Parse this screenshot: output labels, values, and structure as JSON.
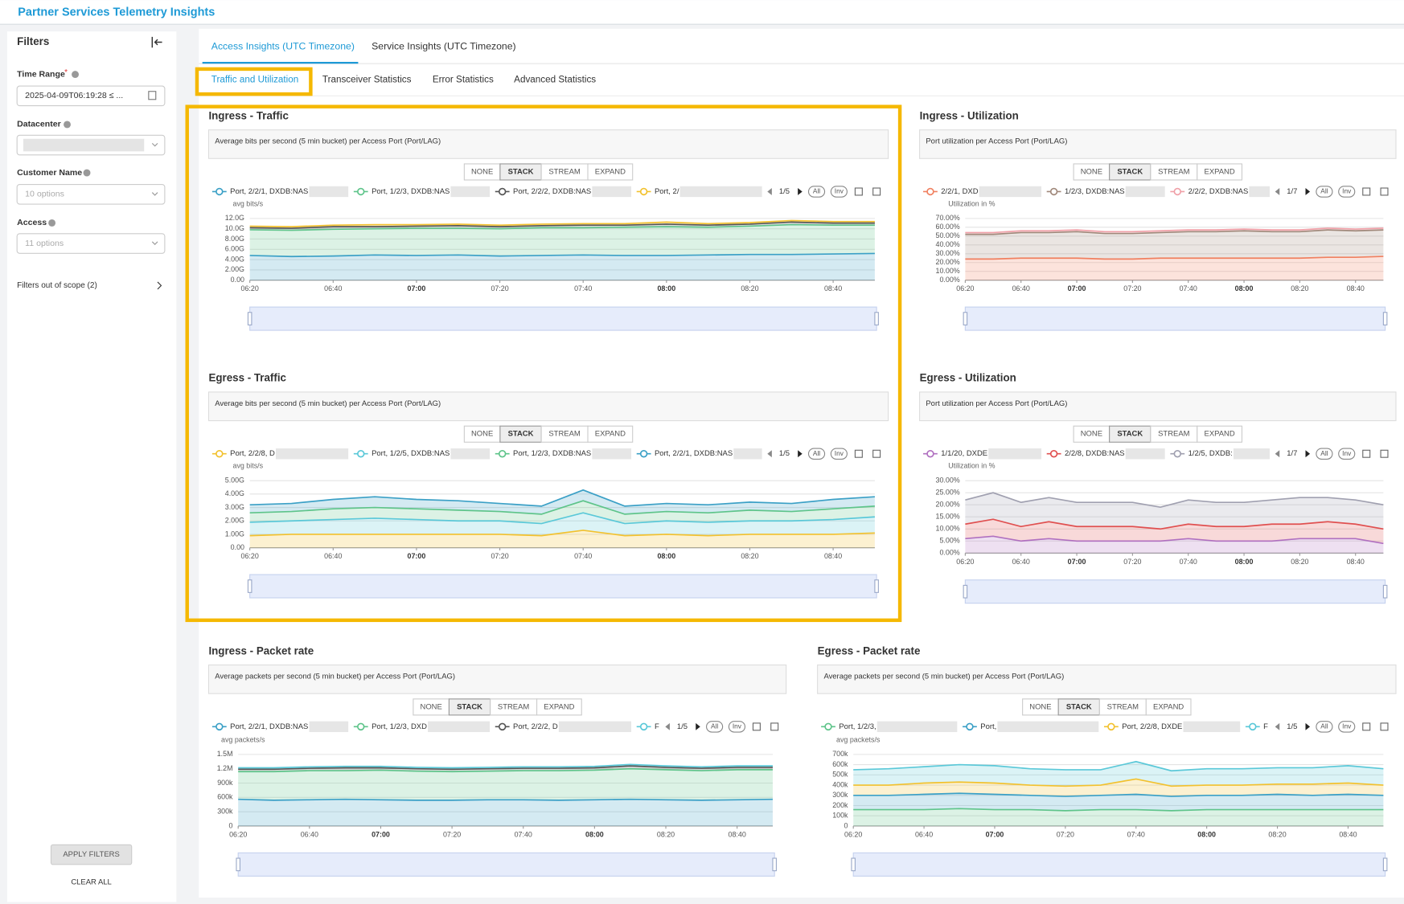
{
  "header": {
    "title": "Partner Services Telemetry Insights"
  },
  "filters": {
    "title": "Filters",
    "time_range_label": "Time Range",
    "required_mark": "*",
    "time_range_value": "2025-04-09T06:19:28 ≤ ...",
    "datacenter_label": "Datacenter",
    "customer_label": "Customer Name",
    "customer_placeholder": "10 options",
    "access_label": "Access",
    "access_placeholder": "11 options",
    "out_of_scope": "Filters out of scope (2)",
    "apply": "APPLY FILTERS",
    "clear": "CLEAR ALL"
  },
  "tabs": [
    "Access Insights (UTC Timezone)",
    "Service Insights (UTC Timezone)"
  ],
  "subtabs": [
    "Traffic and Utilization",
    "Transceiver Statistics",
    "Error Statistics",
    "Advanced Statistics"
  ],
  "chart_data": [
    {
      "type": "area",
      "stacked": true,
      "title": "Ingress - Traffic",
      "subtitle": "Average bits per second (5 min bucket) per Access Port (Port/LAG)",
      "modes": [
        "NONE",
        "STACK",
        "STREAM",
        "EXPAND"
      ],
      "active_mode": "STACK",
      "pager": "1/5",
      "legend_buttons": [
        "All",
        "Inv"
      ],
      "ylabel": "avg bits/s",
      "x": [
        "06:20",
        "06:30",
        "06:40",
        "06:50",
        "07:00",
        "07:10",
        "07:20",
        "07:30",
        "07:40",
        "07:50",
        "08:00",
        "08:10",
        "08:20",
        "08:30",
        "08:40",
        "08:50"
      ],
      "xticks": [
        "06:20",
        "06:40",
        "07:00",
        "07:20",
        "07:40",
        "08:00",
        "08:20",
        "08:40"
      ],
      "ylim": [
        0,
        12
      ],
      "yticks": [
        {
          "value": 12,
          "label": "12.0G"
        },
        {
          "value": 10,
          "label": "10.0G"
        },
        {
          "value": 8,
          "label": "8.00G"
        },
        {
          "value": 6,
          "label": "6.00G"
        },
        {
          "value": 4,
          "label": "4.00G"
        },
        {
          "value": 2,
          "label": "2.00G"
        },
        {
          "value": 0,
          "label": "0.00"
        }
      ],
      "series": [
        {
          "name": "Port, 2/2/1, DXDB:NAS",
          "color": "#3ba0c6",
          "values": [
            4.8,
            4.6,
            4.7,
            4.9,
            4.8,
            4.9,
            4.7,
            4.8,
            4.9,
            4.8,
            4.8,
            4.9,
            5.0,
            5.0,
            5.1,
            5.2
          ]
        },
        {
          "name": "Port, 1/2/3, DXDB:NAS",
          "color": "#5ec48a",
          "values": [
            5.0,
            5.1,
            5.2,
            5.1,
            5.3,
            5.2,
            5.3,
            5.4,
            5.3,
            5.5,
            5.6,
            5.4,
            5.5,
            5.8,
            5.6,
            5.5
          ]
        },
        {
          "name": "Port, 2/2/2, DXDB:NAS",
          "color": "#555555",
          "values": [
            0.4,
            0.4,
            0.5,
            0.4,
            0.4,
            0.5,
            0.4,
            0.4,
            0.5,
            0.4,
            0.5,
            0.4,
            0.4,
            0.5,
            0.4,
            0.4
          ]
        },
        {
          "name": "Port, 2/",
          "color": "#f2c12e",
          "values": [
            0.3,
            0.3,
            0.3,
            0.4,
            0.3,
            0.3,
            0.3,
            0.3,
            0.3,
            0.3,
            0.4,
            0.3,
            0.3,
            0.3,
            0.3,
            0.3
          ]
        }
      ]
    },
    {
      "type": "area",
      "stacked": true,
      "title": "Ingress - Utilization",
      "subtitle": "Port utilization per Access Port (Port/LAG)",
      "modes": [
        "NONE",
        "STACK",
        "STREAM",
        "EXPAND"
      ],
      "active_mode": "STACK",
      "pager": "1/7",
      "legend_buttons": [
        "All",
        "Inv"
      ],
      "ylabel": "Utilization in %",
      "x": [
        "06:20",
        "06:30",
        "06:40",
        "06:50",
        "07:00",
        "07:10",
        "07:20",
        "07:30",
        "07:40",
        "07:50",
        "08:00",
        "08:10",
        "08:20",
        "08:30",
        "08:40",
        "08:50"
      ],
      "xticks": [
        "06:20",
        "06:40",
        "07:00",
        "07:20",
        "07:40",
        "08:00",
        "08:20",
        "08:40"
      ],
      "ylim": [
        0,
        70
      ],
      "yticks": [
        {
          "value": 70,
          "label": "70.00%"
        },
        {
          "value": 60,
          "label": "60.00%"
        },
        {
          "value": 50,
          "label": "50.00%"
        },
        {
          "value": 40,
          "label": "40.00%"
        },
        {
          "value": 30,
          "label": "30.00%"
        },
        {
          "value": 20,
          "label": "20.00%"
        },
        {
          "value": 10,
          "label": "10.00%"
        },
        {
          "value": 0,
          "label": "0.00%"
        }
      ],
      "series": [
        {
          "name": "2/2/1, DXD",
          "color": "#f08060",
          "values": [
            24,
            24,
            25,
            25,
            25,
            24,
            24,
            25,
            25,
            25,
            25,
            25,
            25,
            26,
            26,
            27
          ]
        },
        {
          "name": "1/2/3, DXDB:NAS",
          "color": "#a0887a",
          "values": [
            28,
            28,
            29,
            29,
            30,
            29,
            29,
            29,
            30,
            30,
            31,
            30,
            30,
            31,
            30,
            30
          ]
        },
        {
          "name": "2/2/2, DXDB:NAS",
          "color": "#f0a0a8",
          "values": [
            2,
            2,
            2,
            2,
            2,
            2,
            2,
            2,
            2,
            2,
            2,
            2,
            2,
            2,
            2,
            2
          ]
        }
      ]
    },
    {
      "type": "area",
      "stacked": true,
      "title": "Egress - Traffic",
      "subtitle": "Average bits per second (5 min bucket) per Access Port (Port/LAG)",
      "modes": [
        "NONE",
        "STACK",
        "STREAM",
        "EXPAND"
      ],
      "active_mode": "STACK",
      "pager": "1/5",
      "legend_buttons": [
        "All",
        "Inv"
      ],
      "ylabel": "avg bits/s",
      "x": [
        "06:20",
        "06:30",
        "06:40",
        "06:50",
        "07:00",
        "07:10",
        "07:20",
        "07:30",
        "07:40",
        "07:50",
        "08:00",
        "08:10",
        "08:20",
        "08:30",
        "08:40",
        "08:50"
      ],
      "xticks": [
        "06:20",
        "06:40",
        "07:00",
        "07:20",
        "07:40",
        "08:00",
        "08:20",
        "08:40"
      ],
      "ylim": [
        0,
        5
      ],
      "yticks": [
        {
          "value": 5,
          "label": "5.00G"
        },
        {
          "value": 4,
          "label": "4.00G"
        },
        {
          "value": 3,
          "label": "3.00G"
        },
        {
          "value": 2,
          "label": "2.00G"
        },
        {
          "value": 1,
          "label": "1.00G"
        },
        {
          "value": 0,
          "label": "0.00"
        }
      ],
      "series": [
        {
          "name": "Port, 2/2/8, D",
          "color": "#f2c12e",
          "values": [
            0.9,
            1.0,
            1.0,
            1.0,
            1.0,
            1.0,
            1.0,
            0.9,
            1.3,
            0.9,
            1.0,
            0.9,
            1.0,
            1.0,
            1.0,
            1.1
          ]
        },
        {
          "name": "Port, 1/2/5, DXDB:NAS",
          "color": "#5ac8d8",
          "values": [
            1.0,
            1.0,
            1.1,
            1.2,
            1.1,
            1.0,
            1.0,
            0.9,
            1.3,
            0.9,
            1.0,
            1.0,
            1.0,
            1.0,
            1.1,
            1.2
          ]
        },
        {
          "name": "Port, 1/2/3, DXDB:NAS",
          "color": "#5ec48a",
          "values": [
            0.7,
            0.7,
            0.8,
            0.8,
            0.8,
            0.8,
            0.7,
            0.7,
            0.9,
            0.7,
            0.7,
            0.7,
            0.8,
            0.7,
            0.8,
            0.8
          ]
        },
        {
          "name": "Port, 2/2/1, DXDB:NAS",
          "color": "#3ba0c6",
          "values": [
            0.6,
            0.6,
            0.7,
            0.8,
            0.7,
            0.7,
            0.6,
            0.6,
            0.8,
            0.6,
            0.6,
            0.6,
            0.6,
            0.6,
            0.7,
            0.7
          ]
        }
      ]
    },
    {
      "type": "area",
      "stacked": true,
      "title": "Egress - Utilization",
      "subtitle": "Port utilization per Access Port (Port/LAG)",
      "modes": [
        "NONE",
        "STACK",
        "STREAM",
        "EXPAND"
      ],
      "active_mode": "STACK",
      "pager": "1/7",
      "legend_buttons": [
        "All",
        "Inv"
      ],
      "ylabel": "Utilization in %",
      "x": [
        "06:20",
        "06:30",
        "06:40",
        "06:50",
        "07:00",
        "07:10",
        "07:20",
        "07:30",
        "07:40",
        "07:50",
        "08:00",
        "08:10",
        "08:20",
        "08:30",
        "08:40",
        "08:50"
      ],
      "xticks": [
        "06:20",
        "06:40",
        "07:00",
        "07:20",
        "07:40",
        "08:00",
        "08:20",
        "08:40"
      ],
      "ylim": [
        0,
        30
      ],
      "yticks": [
        {
          "value": 30,
          "label": "30.00%"
        },
        {
          "value": 25,
          "label": "25.00%"
        },
        {
          "value": 20,
          "label": "20.00%"
        },
        {
          "value": 15,
          "label": "15.00%"
        },
        {
          "value": 10,
          "label": "10.00%"
        },
        {
          "value": 5,
          "label": "5.00%"
        },
        {
          "value": 0,
          "label": "0.00%"
        }
      ],
      "series": [
        {
          "name": "1/1/20, DXDE",
          "color": "#b070c0",
          "values": [
            6,
            7,
            5,
            6,
            5,
            5,
            5,
            5,
            6,
            5,
            5,
            5,
            6,
            6,
            6,
            4
          ]
        },
        {
          "name": "2/2/8, DXDB:NAS",
          "color": "#e05050",
          "values": [
            6,
            7,
            6,
            7,
            6,
            6,
            6,
            5,
            6,
            6,
            6,
            7,
            6,
            7,
            6,
            6
          ]
        },
        {
          "name": "1/2/5, DXDB:",
          "color": "#a0a0b0",
          "values": [
            10,
            11,
            10,
            10,
            10,
            10,
            10,
            9,
            10,
            10,
            10,
            10,
            11,
            10,
            10,
            10
          ]
        }
      ]
    },
    {
      "type": "area",
      "stacked": true,
      "title": "Ingress - Packet rate",
      "subtitle": "Average packets per second (5 min bucket) per Access Port (Port/LAG)",
      "modes": [
        "NONE",
        "STACK",
        "STREAM",
        "EXPAND"
      ],
      "active_mode": "STACK",
      "pager": "1/5",
      "legend_buttons": [
        "All",
        "Inv"
      ],
      "ylabel": "avg packets/s",
      "x": [
        "06:20",
        "06:30",
        "06:40",
        "06:50",
        "07:00",
        "07:10",
        "07:20",
        "07:30",
        "07:40",
        "07:50",
        "08:00",
        "08:10",
        "08:20",
        "08:30",
        "08:40",
        "08:50"
      ],
      "xticks": [
        "06:20",
        "06:40",
        "07:00",
        "07:20",
        "07:40",
        "08:00",
        "08:20",
        "08:40"
      ],
      "ylim": [
        0,
        1500000
      ],
      "yticks": [
        {
          "value": 1500000,
          "label": "1.5M"
        },
        {
          "value": 1200000,
          "label": "1.2M"
        },
        {
          "value": 900000,
          "label": "900k"
        },
        {
          "value": 600000,
          "label": "600k"
        },
        {
          "value": 300000,
          "label": "300k"
        },
        0
      ],
      "series": [
        {
          "name": "Port, 2/2/1, DXDB:NAS",
          "color": "#3ba0c6",
          "values": [
            560000,
            540000,
            550000,
            560000,
            550000,
            540000,
            540000,
            550000,
            550000,
            540000,
            550000,
            560000,
            550000,
            540000,
            550000,
            560000
          ]
        },
        {
          "name": "Port, 1/2/3, DXD",
          "color": "#5ec48a",
          "values": [
            580000,
            600000,
            610000,
            600000,
            620000,
            610000,
            600000,
            600000,
            610000,
            620000,
            620000,
            640000,
            630000,
            620000,
            630000,
            620000
          ]
        },
        {
          "name": "Port, 2/2/2, D",
          "color": "#555555",
          "values": [
            50000,
            50000,
            50000,
            60000,
            50000,
            50000,
            50000,
            50000,
            50000,
            50000,
            50000,
            60000,
            50000,
            50000,
            50000,
            50000
          ]
        },
        {
          "name": "F",
          "color": "#5ac8d8",
          "values": [
            30000,
            30000,
            30000,
            30000,
            30000,
            30000,
            30000,
            30000,
            30000,
            30000,
            30000,
            30000,
            30000,
            30000,
            30000,
            30000
          ]
        }
      ]
    },
    {
      "type": "area",
      "stacked": true,
      "title": "Egress - Packet rate",
      "subtitle": "Average packets per second (5 min bucket) per Access Port (Port/LAG)",
      "modes": [
        "NONE",
        "STACK",
        "STREAM",
        "EXPAND"
      ],
      "active_mode": "STACK",
      "pager": "1/5",
      "legend_buttons": [
        "All",
        "Inv"
      ],
      "ylabel": "avg packets/s",
      "x": [
        "06:20",
        "06:30",
        "06:40",
        "06:50",
        "07:00",
        "07:10",
        "07:20",
        "07:30",
        "07:40",
        "07:50",
        "08:00",
        "08:10",
        "08:20",
        "08:30",
        "08:40",
        "08:50"
      ],
      "xticks": [
        "06:20",
        "06:40",
        "07:00",
        "07:20",
        "07:40",
        "08:00",
        "08:20",
        "08:40"
      ],
      "ylim": [
        0,
        700000
      ],
      "yticks": [
        {
          "value": 700000,
          "label": "700k"
        },
        {
          "value": 600000,
          "label": "600k"
        },
        {
          "value": 500000,
          "label": "500k"
        },
        {
          "value": 400000,
          "label": "400k"
        },
        {
          "value": 300000,
          "label": "300k"
        },
        {
          "value": 200000,
          "label": "200k"
        },
        {
          "value": 100000,
          "label": "100k"
        },
        0
      ],
      "series": [
        {
          "name": "Port, 1/2/3,",
          "color": "#5ec48a",
          "values": [
            160000,
            160000,
            160000,
            170000,
            160000,
            160000,
            150000,
            160000,
            160000,
            150000,
            160000,
            160000,
            160000,
            160000,
            160000,
            160000
          ]
        },
        {
          "name": "Port,",
          "color": "#3ba0c6",
          "values": [
            140000,
            140000,
            150000,
            150000,
            150000,
            140000,
            140000,
            140000,
            150000,
            140000,
            140000,
            140000,
            150000,
            140000,
            150000,
            140000
          ]
        },
        {
          "name": "Port, 2/2/8, DXDE",
          "color": "#f2c12e",
          "values": [
            100000,
            100000,
            110000,
            110000,
            110000,
            100000,
            100000,
            100000,
            150000,
            100000,
            100000,
            100000,
            100000,
            110000,
            110000,
            100000
          ]
        },
        {
          "name": "F",
          "color": "#5ac8d8",
          "values": [
            150000,
            160000,
            160000,
            170000,
            170000,
            160000,
            160000,
            150000,
            170000,
            150000,
            160000,
            160000,
            160000,
            160000,
            170000,
            160000
          ]
        }
      ]
    }
  ]
}
